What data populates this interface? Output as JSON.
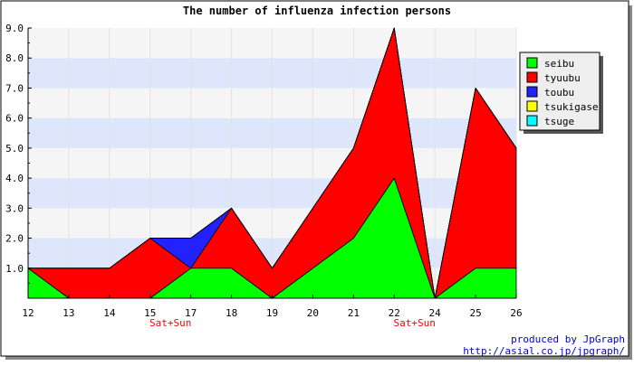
{
  "chart_data": {
    "type": "area",
    "stacked": true,
    "title": "The number of influenza infection persons",
    "x": [
      "12",
      "13",
      "14",
      "15",
      "17",
      "18",
      "19",
      "20",
      "21",
      "22",
      "24",
      "25",
      "26"
    ],
    "weekend_labels": [
      {
        "after_index": 3,
        "text": "Sat+Sun"
      },
      {
        "after_index": 9,
        "text": "Sat+Sun"
      }
    ],
    "ylim": [
      0,
      9
    ],
    "yticks": [
      "1.0",
      "2.0",
      "3.0",
      "4.0",
      "5.0",
      "6.0",
      "7.0",
      "8.0",
      "9.0"
    ],
    "grid": true,
    "legend_position": "top-right",
    "series": [
      {
        "name": "seibu",
        "color": "#00ff00",
        "values": [
          1,
          0,
          0,
          0,
          1,
          1,
          0,
          1,
          2,
          4,
          0,
          1,
          1
        ]
      },
      {
        "name": "tyuubu",
        "color": "#ff0000",
        "values": [
          0,
          1,
          1,
          2,
          0,
          2,
          1,
          2,
          3,
          5,
          0,
          6,
          4
        ]
      },
      {
        "name": "toubu",
        "color": "#2222ff",
        "values": [
          0,
          0,
          0,
          0,
          1,
          0,
          0,
          0,
          0,
          0,
          0,
          0,
          0
        ]
      },
      {
        "name": "tsukigase",
        "color": "#ffff00",
        "values": [
          0,
          0,
          0,
          0,
          0,
          0,
          0,
          0,
          0,
          0,
          0,
          0,
          0
        ]
      },
      {
        "name": "tsuge",
        "color": "#00ffff",
        "values": [
          0,
          0,
          0,
          0,
          0,
          0,
          0,
          0,
          0,
          0,
          0,
          0,
          0
        ]
      }
    ]
  },
  "credits": {
    "line1": "produced by JpGraph",
    "line2": "http://asial.co.jp/jpgraph/"
  },
  "colors": {
    "band_light": "#f5f5f5",
    "band_blue": "#dde6fb",
    "weekend_label": "#ff0000",
    "credits": "#0000cc"
  }
}
